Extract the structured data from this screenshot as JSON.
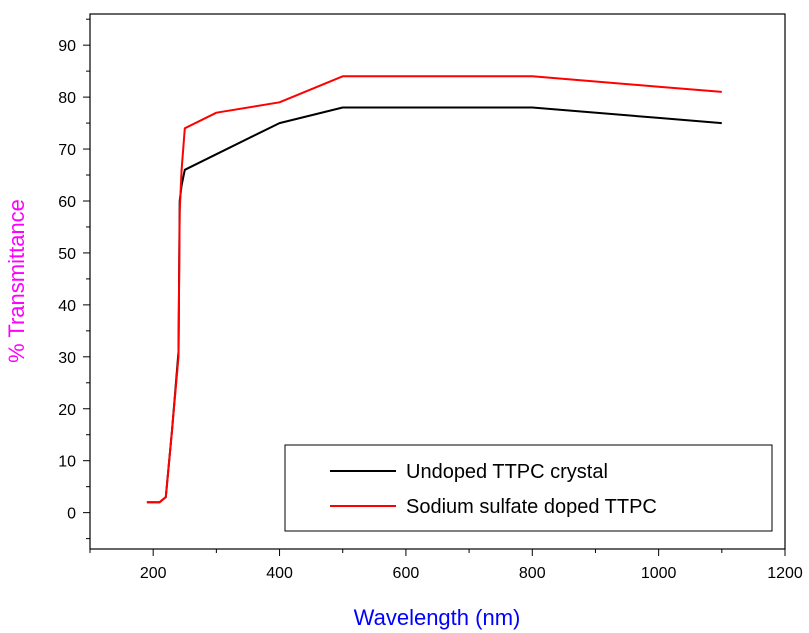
{
  "chart_data": {
    "type": "line",
    "xlabel": "Wavelength (nm)",
    "ylabel": "% Transmittance",
    "xlim": [
      100,
      1200
    ],
    "ylim": [
      -7,
      96
    ],
    "x_ticks": [
      200,
      400,
      600,
      800,
      1000,
      1200
    ],
    "y_ticks": [
      0,
      10,
      20,
      30,
      40,
      50,
      60,
      70,
      80,
      90
    ],
    "grid": false,
    "legend_position": "bottom-right",
    "series": [
      {
        "name": "Undoped TTPC crystal",
        "color": "#000000",
        "x": [
          190,
          210,
          220,
          230,
          240,
          242,
          245,
          250,
          300,
          400,
          500,
          600,
          700,
          800,
          1000,
          1100
        ],
        "y": [
          2,
          2,
          3,
          16,
          31,
          60,
          63,
          66,
          69,
          75,
          78,
          78,
          78,
          78,
          76,
          75
        ]
      },
      {
        "name": "Sodium sulfate doped TTPC",
        "color": "#ff0000",
        "x": [
          190,
          210,
          220,
          230,
          240,
          242,
          245,
          250,
          300,
          400,
          500,
          600,
          700,
          800,
          1000,
          1100
        ],
        "y": [
          2,
          2,
          3,
          16,
          30,
          58,
          66,
          74,
          77,
          79,
          84,
          84,
          84,
          84,
          82,
          81
        ]
      }
    ]
  },
  "colors": {
    "xlabel_color": "#0000ff",
    "ylabel_color": "#ff00ff",
    "axis_color": "#000000"
  }
}
